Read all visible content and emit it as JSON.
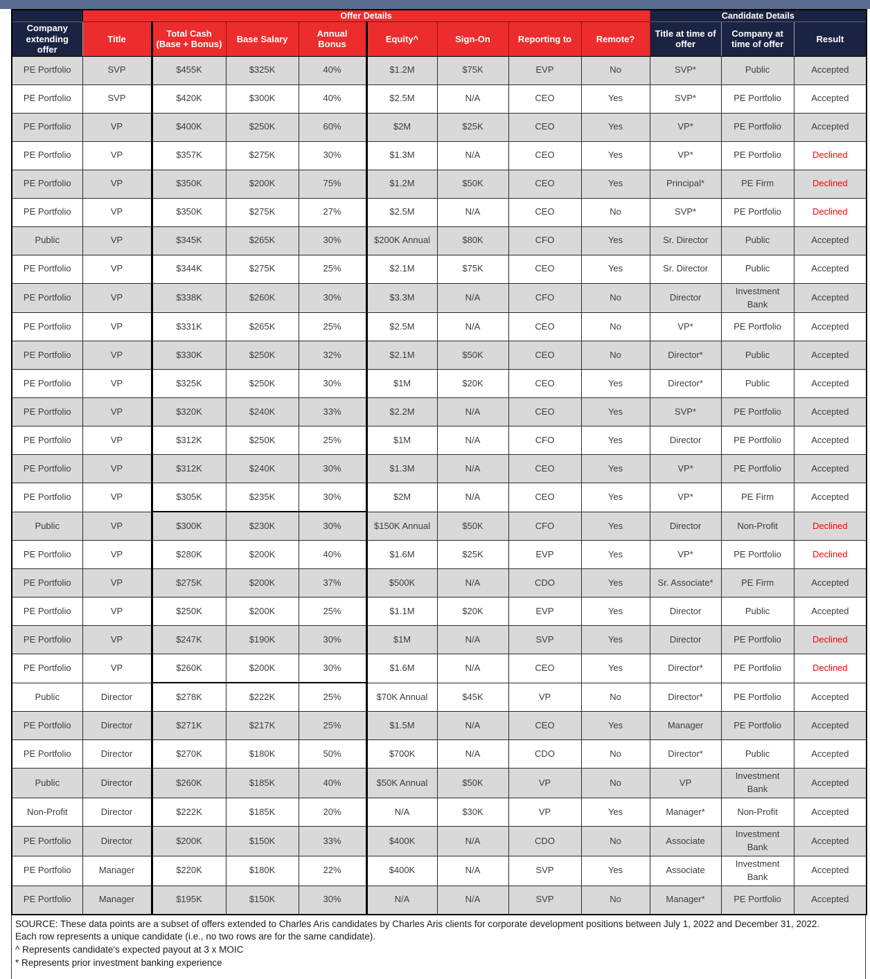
{
  "colors": {
    "header_red": "#ed2c2d",
    "header_navy": "#1b2342",
    "row_shaded_grey": "#d9d9d9",
    "declined_text_red": "#ff0000",
    "body_text": "#3c3c3c"
  },
  "table": {
    "group_headers": {
      "offer": "Offer Details",
      "candidate": "Candidate Details"
    },
    "columns": [
      {
        "key": "company_extending_offer",
        "label": "Company extending offer",
        "group": "none"
      },
      {
        "key": "title",
        "label": "Title",
        "group": "offer"
      },
      {
        "key": "total_cash",
        "label": "Total Cash\n(Base + Bonus)",
        "group": "offer"
      },
      {
        "key": "base_salary",
        "label": "Base Salary",
        "group": "offer"
      },
      {
        "key": "annual_bonus",
        "label": "Annual Bonus",
        "group": "offer"
      },
      {
        "key": "equity",
        "label": "Equity^",
        "group": "offer"
      },
      {
        "key": "sign_on",
        "label": "Sign-On",
        "group": "offer"
      },
      {
        "key": "reporting_to",
        "label": "Reporting to",
        "group": "offer"
      },
      {
        "key": "remote",
        "label": "Remote?",
        "group": "offer"
      },
      {
        "key": "title_at_offer",
        "label": "Title at time of offer",
        "group": "candidate"
      },
      {
        "key": "company_at_offer",
        "label": "Company at time of offer",
        "group": "candidate"
      },
      {
        "key": "result",
        "label": "Result",
        "group": "candidate"
      }
    ],
    "rows": [
      {
        "shaded": true,
        "cells": [
          "PE Portfolio",
          "SVP",
          "$455K",
          "$325K",
          "40%",
          "$1.2M",
          "$75K",
          "EVP",
          "No",
          "SVP*",
          "Public",
          "Accepted"
        ]
      },
      {
        "shaded": false,
        "cells": [
          "PE Portfolio",
          "SVP",
          "$420K",
          "$300K",
          "40%",
          "$2.5M",
          "N/A",
          "CEO",
          "Yes",
          "SVP*",
          "PE Portfolio",
          "Accepted"
        ]
      },
      {
        "shaded": true,
        "cells": [
          "PE Portfolio",
          "VP",
          "$400K",
          "$250K",
          "60%",
          "$2M",
          "$25K",
          "CEO",
          "Yes",
          "VP*",
          "PE Portfolio",
          "Accepted"
        ]
      },
      {
        "shaded": false,
        "cells": [
          "PE Portfolio",
          "VP",
          "$357K",
          "$275K",
          "30%",
          "$1.3M",
          "N/A",
          "CEO",
          "Yes",
          "VP*",
          "PE Portfolio",
          "Declined"
        ]
      },
      {
        "shaded": true,
        "cells": [
          "PE Portfolio",
          "VP",
          "$350K",
          "$200K",
          "75%",
          "$1.2M",
          "$50K",
          "CEO",
          "Yes",
          "Principal*",
          "PE Firm",
          "Declined"
        ]
      },
      {
        "shaded": false,
        "cells": [
          "PE Portfolio",
          "VP",
          "$350K",
          "$275K",
          "27%",
          "$2.5M",
          "N/A",
          "CEO",
          "No",
          "SVP*",
          "PE Portfolio",
          "Declined"
        ]
      },
      {
        "shaded": true,
        "cells": [
          "Public",
          "VP",
          "$345K",
          "$265K",
          "30%",
          "$200K Annual",
          "$80K",
          "CFO",
          "Yes",
          "Sr. Director",
          "Public",
          "Accepted"
        ]
      },
      {
        "shaded": false,
        "cells": [
          "PE Portfolio",
          "VP",
          "$344K",
          "$275K",
          "25%",
          "$2.1M",
          "$75K",
          "CEO",
          "Yes",
          "Sr. Director",
          "Public",
          "Accepted"
        ]
      },
      {
        "shaded": true,
        "cells": [
          "PE Portfolio",
          "VP",
          "$338K",
          "$260K",
          "30%",
          "$3.3M",
          "N/A",
          "CFO",
          "No",
          "Director",
          "Investment Bank",
          "Accepted"
        ]
      },
      {
        "shaded": false,
        "cells": [
          "PE Portfolio",
          "VP",
          "$331K",
          "$265K",
          "25%",
          "$2.5M",
          "N/A",
          "CEO",
          "No",
          "VP*",
          "PE Portfolio",
          "Accepted"
        ]
      },
      {
        "shaded": true,
        "cells": [
          "PE Portfolio",
          "VP",
          "$330K",
          "$250K",
          "32%",
          "$2.1M",
          "$50K",
          "CEO",
          "No",
          "Director*",
          "Public",
          "Accepted"
        ]
      },
      {
        "shaded": false,
        "cells": [
          "PE Portfolio",
          "VP",
          "$325K",
          "$250K",
          "30%",
          "$1M",
          "$20K",
          "CEO",
          "Yes",
          "Director*",
          "Public",
          "Accepted"
        ]
      },
      {
        "shaded": true,
        "cells": [
          "PE Portfolio",
          "VP",
          "$320K",
          "$240K",
          "33%",
          "$2.2M",
          "N/A",
          "CEO",
          "Yes",
          "SVP*",
          "PE Portfolio",
          "Accepted"
        ]
      },
      {
        "shaded": false,
        "cells": [
          "PE Portfolio",
          "VP",
          "$312K",
          "$250K",
          "25%",
          "$1M",
          "N/A",
          "CFO",
          "Yes",
          "Director",
          "PE Portfolio",
          "Accepted"
        ]
      },
      {
        "shaded": true,
        "cells": [
          "PE Portfolio",
          "VP",
          "$312K",
          "$240K",
          "30%",
          "$1.3M",
          "N/A",
          "CEO",
          "Yes",
          "VP*",
          "PE Portfolio",
          "Accepted"
        ]
      },
      {
        "shaded": false,
        "cash_box_end": true,
        "cells": [
          "PE Portfolio",
          "VP",
          "$305K",
          "$235K",
          "30%",
          "$2M",
          "N/A",
          "CEO",
          "Yes",
          "VP*",
          "PE Firm",
          "Accepted"
        ]
      },
      {
        "shaded": true,
        "cells": [
          "Public",
          "VP",
          "$300K",
          "$230K",
          "30%",
          "$150K Annual",
          "$50K",
          "CFO",
          "Yes",
          "Director",
          "Non-Profit",
          "Declined"
        ]
      },
      {
        "shaded": false,
        "cells": [
          "PE Portfolio",
          "VP",
          "$280K",
          "$200K",
          "40%",
          "$1.6M",
          "$25K",
          "EVP",
          "Yes",
          "VP*",
          "PE Portfolio",
          "Declined"
        ]
      },
      {
        "shaded": true,
        "cells": [
          "PE Portfolio",
          "VP",
          "$275K",
          "$200K",
          "37%",
          "$500K",
          "N/A",
          "CDO",
          "Yes",
          "Sr. Associate*",
          "PE Firm",
          "Accepted"
        ]
      },
      {
        "shaded": false,
        "cells": [
          "PE Portfolio",
          "VP",
          "$250K",
          "$200K",
          "25%",
          "$1.1M",
          "$20K",
          "EVP",
          "Yes",
          "Director",
          "Public",
          "Accepted"
        ]
      },
      {
        "shaded": true,
        "cells": [
          "PE Portfolio",
          "VP",
          "$247K",
          "$190K",
          "30%",
          "$1M",
          "N/A",
          "SVP",
          "Yes",
          "Director",
          "PE Portfolio",
          "Declined"
        ]
      },
      {
        "shaded": false,
        "cash_box_end": true,
        "cells": [
          "PE Portfolio",
          "VP",
          "$260K",
          "$200K",
          "30%",
          "$1.6M",
          "N/A",
          "CEO",
          "Yes",
          "Director*",
          "PE Portfolio",
          "Declined"
        ]
      },
      {
        "shaded": false,
        "cells": [
          "Public",
          "Director",
          "$278K",
          "$222K",
          "25%",
          "$70K Annual",
          "$45K",
          "VP",
          "No",
          "Director*",
          "PE Portfolio",
          "Accepted"
        ]
      },
      {
        "shaded": true,
        "cells": [
          "PE Portfolio",
          "Director",
          "$271K",
          "$217K",
          "25%",
          "$1.5M",
          "N/A",
          "CEO",
          "Yes",
          "Manager",
          "PE Portfolio",
          "Accepted"
        ]
      },
      {
        "shaded": false,
        "cells": [
          "PE Portfolio",
          "Director",
          "$270K",
          "$180K",
          "50%",
          "$700K",
          "N/A",
          "CDO",
          "No",
          "Director*",
          "Public",
          "Accepted"
        ]
      },
      {
        "shaded": true,
        "cells": [
          "Public",
          "Director",
          "$260K",
          "$185K",
          "40%",
          "$50K Annual",
          "$50K",
          "VP",
          "No",
          "VP",
          "Investment Bank",
          "Accepted"
        ]
      },
      {
        "shaded": false,
        "cells": [
          "Non-Profit",
          "Director",
          "$222K",
          "$185K",
          "20%",
          "N/A",
          "$30K",
          "VP",
          "Yes",
          "Manager*",
          "Non-Profit",
          "Accepted"
        ]
      },
      {
        "shaded": true,
        "cells": [
          "PE Portfolio",
          "Director",
          "$200K",
          "$150K",
          "33%",
          "$400K",
          "N/A",
          "CDO",
          "No",
          "Associate",
          "Investment Bank",
          "Accepted"
        ]
      },
      {
        "shaded": false,
        "cells": [
          "PE Portfolio",
          "Manager",
          "$220K",
          "$180K",
          "22%",
          "$400K",
          "N/A",
          "SVP",
          "Yes",
          "Associate",
          "Investment Bank",
          "Accepted"
        ]
      },
      {
        "shaded": true,
        "cells": [
          "PE Portfolio",
          "Manager",
          "$195K",
          "$150K",
          "30%",
          "N/A",
          "N/A",
          "SVP",
          "No",
          "Manager*",
          "PE Portfolio",
          "Accepted"
        ]
      }
    ],
    "declined_value": "Declined"
  },
  "footnotes": {
    "source": "SOURCE: These data points are a subset of offers extended to Charles Aris candidates by Charles Aris clients for corporate development positions between July 1, 2022 and December 31, 2022.",
    "unique": "Each row represents a unique candidate (i.e., no two rows are for the same candidate).",
    "equity_note": "^ Represents candidate's expected payout at 3 x MOIC",
    "asterisk_note": "* Represents prior investment banking experience"
  }
}
